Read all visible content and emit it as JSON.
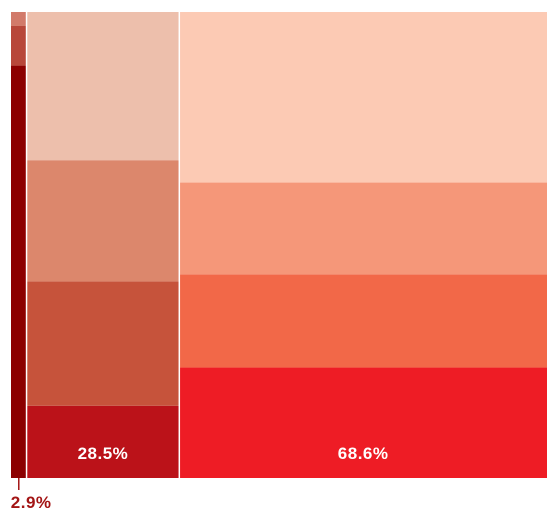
{
  "chart_data": {
    "type": "mekko",
    "title": "",
    "xlabel": "",
    "ylabel": "",
    "columns": [
      {
        "width_pct": 2.9,
        "label": "2.9%",
        "segments": [
          {
            "share": 0.885,
            "color": "#8c0000"
          },
          {
            "share": 0.085,
            "color": "#b8473a"
          },
          {
            "share": 0.03,
            "color": "#d27a6a"
          }
        ]
      },
      {
        "width_pct": 28.5,
        "label": "28.5%",
        "segments": [
          {
            "share": 0.155,
            "color": "#bb1219"
          },
          {
            "share": 0.267,
            "color": "#c6533b"
          },
          {
            "share": 0.26,
            "color": "#dc876c"
          },
          {
            "share": 0.318,
            "color": "#edbfac"
          }
        ]
      },
      {
        "width_pct": 68.6,
        "label": "68.6%",
        "segments": [
          {
            "share": 0.237,
            "color": "#ee1c25"
          },
          {
            "share": 0.2,
            "color": "#f26848"
          },
          {
            "share": 0.197,
            "color": "#f59779"
          },
          {
            "share": 0.366,
            "color": "#fccab4"
          }
        ]
      }
    ]
  }
}
